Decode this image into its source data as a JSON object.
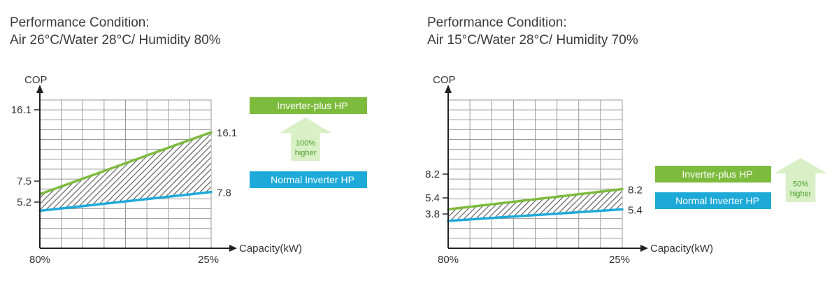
{
  "chart_data": [
    {
      "type": "area",
      "title_line1": "Performance Condition:",
      "title_line2": "Air 26°C/Water 28°C/ Humidity 80%",
      "xlabel": "Capacity(kW)",
      "ylabel": "COP",
      "x_tick_labels": [
        "80%",
        "25%"
      ],
      "y_tick_labels": [
        "16.1",
        "7.5",
        "5.2"
      ],
      "ylim": [
        0,
        20
      ],
      "grid": true,
      "series": [
        {
          "name": "Inverter-plus HP",
          "start": 7.5,
          "end": 16.1,
          "end_label": "16.1",
          "color": "#7dbb3d"
        },
        {
          "name": "Normal Inverter HP",
          "start": 5.2,
          "end": 7.8,
          "end_label": "7.8",
          "color": "#1eaad9"
        }
      ],
      "annotation": {
        "line1": "100%",
        "line2": "higher"
      }
    },
    {
      "type": "area",
      "title_line1": "Performance Condition:",
      "title_line2": "Air 15°C/Water 28°C/ Humidity 70%",
      "xlabel": "Capacity(kW)",
      "ylabel": "COP",
      "x_tick_labels": [
        "80%",
        "25%"
      ],
      "y_tick_labels": [
        "8.2",
        "5.4",
        "3.8"
      ],
      "ylim": [
        0,
        20
      ],
      "grid": true,
      "series": [
        {
          "name": "Inverter-plus HP",
          "start": 5.4,
          "end": 8.2,
          "end_label": "8.2",
          "color": "#7dbb3d"
        },
        {
          "name": "Normal Inverter HP",
          "start": 3.8,
          "end": 5.4,
          "end_label": "5.4",
          "color": "#1eaad9"
        }
      ],
      "annotation": {
        "line1": "50%",
        "line2": "higher"
      }
    }
  ]
}
